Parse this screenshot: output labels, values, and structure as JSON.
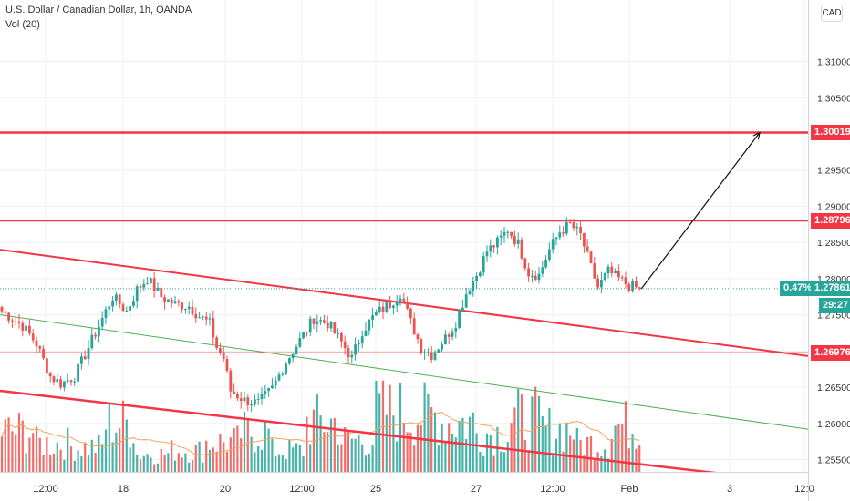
{
  "header": {
    "symbol_line": "U.S. Dollar / Canadian Dollar, 1h, OANDA",
    "indicator_line": "Vol (20)",
    "currency_badge": "CAD"
  },
  "labels": {
    "target_level": "1.30019",
    "resistance_level": "1.28796",
    "support_level": "1.26976",
    "change_pct": "0.47%",
    "last_price": "1.27861",
    "countdown": "29:27"
  },
  "colors": {
    "bull": "#26a69a",
    "bear": "#ef5350",
    "level_line": "#f23645",
    "price_tag": "#26a69a",
    "volume_ma": "#f7a35c",
    "green_trendline": "#4caf50"
  },
  "chart_data": {
    "type": "candlestick",
    "title": "U.S. Dollar / Canadian Dollar, 1h, OANDA",
    "y_axis": {
      "ticks": [
        1.255,
        1.26,
        1.265,
        1.27,
        1.275,
        1.28,
        1.285,
        1.29,
        1.295,
        1.3,
        1.305,
        1.31
      ],
      "tick_labels": [
        "1.25500",
        "1.26000",
        "1.26500",
        "1.27000",
        "1.27500",
        "1.28000",
        "1.28500",
        "1.29000",
        "1.29500",
        "1.30000",
        "1.30500",
        "1.31000"
      ],
      "range": [
        1.2533,
        1.3185
      ]
    },
    "x_axis": {
      "tick_labels": [
        "12:00",
        "18",
        "20",
        "12:00",
        "25",
        "27",
        "12:00",
        "Feb",
        "3",
        "12:0"
      ]
    },
    "price_path": [
      [
        0,
        1.2755
      ],
      [
        6,
        1.2735
      ],
      [
        10,
        1.271
      ],
      [
        14,
        1.2665
      ],
      [
        17,
        1.2655
      ],
      [
        21,
        1.2665
      ],
      [
        25,
        1.2705
      ],
      [
        28,
        1.2735
      ],
      [
        32,
        1.2775
      ],
      [
        36,
        1.2755
      ],
      [
        39,
        1.2785
      ],
      [
        42,
        1.28
      ],
      [
        46,
        1.2775
      ],
      [
        50,
        1.2765
      ],
      [
        54,
        1.2762
      ],
      [
        57,
        1.2748
      ],
      [
        60,
        1.2738
      ],
      [
        62,
        1.2705
      ],
      [
        64,
        1.269
      ],
      [
        66,
        1.2645
      ],
      [
        70,
        1.2632
      ],
      [
        74,
        1.2628
      ],
      [
        78,
        1.2648
      ],
      [
        82,
        1.2685
      ],
      [
        86,
        1.2715
      ],
      [
        90,
        1.2745
      ],
      [
        94,
        1.2738
      ],
      [
        98,
        1.2712
      ],
      [
        101,
        1.269
      ],
      [
        104,
        1.2728
      ],
      [
        108,
        1.2752
      ],
      [
        112,
        1.2765
      ],
      [
        115,
        1.278
      ],
      [
        118,
        1.274
      ],
      [
        121,
        1.2705
      ],
      [
        124,
        1.2695
      ],
      [
        128,
        1.2718
      ],
      [
        131,
        1.274
      ],
      [
        134,
        1.278
      ],
      [
        137,
        1.2805
      ],
      [
        140,
        1.2838
      ],
      [
        143,
        1.285
      ],
      [
        146,
        1.2868
      ],
      [
        149,
        1.2848
      ],
      [
        152,
        1.2808
      ],
      [
        155,
        1.2805
      ],
      [
        158,
        1.284
      ],
      [
        161,
        1.2865
      ],
      [
        164,
        1.2875
      ],
      [
        167,
        1.286
      ],
      [
        170,
        1.2815
      ],
      [
        172,
        1.2788
      ],
      [
        175,
        1.281
      ],
      [
        178,
        1.28
      ],
      [
        181,
        1.279
      ],
      [
        184,
        1.2786
      ]
    ],
    "volume": {
      "range": [
        0,
        100
      ],
      "levels_at_peaks": [
        57,
        40,
        35,
        68,
        25,
        30,
        42,
        55,
        30,
        70,
        45,
        85,
        80,
        70,
        55,
        75,
        60,
        40,
        65
      ]
    },
    "horizontal_levels": [
      1.30019,
      1.28796,
      1.26976
    ],
    "last_price": 1.27861,
    "change_pct": 0.47,
    "projection": {
      "from": 1.2786,
      "to": 1.30019
    }
  }
}
